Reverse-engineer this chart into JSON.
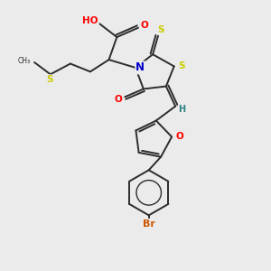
{
  "bg_color": "#ebebeb",
  "bond_color": "#2c2c2c",
  "atom_colors": {
    "O": "#ff0000",
    "N": "#0000cc",
    "S": "#cccc00",
    "Br": "#cc5500",
    "H": "#2c8080",
    "C": "#2c2c2c"
  },
  "figsize": [
    3.0,
    3.0
  ],
  "dpi": 100
}
